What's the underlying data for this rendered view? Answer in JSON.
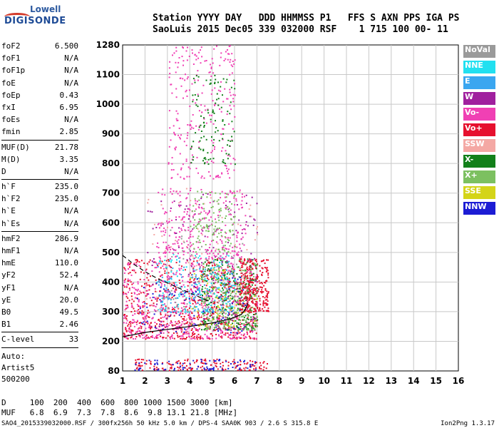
{
  "logo": {
    "top": "Lowell",
    "main": "DIGISONDE"
  },
  "header": {
    "labels": "Station YYYY DAY   DDD HHMMSS P1   FFS S AXN PPS IGA PS",
    "values": "SaoLuis 2015 Dec05 339 032000 RSF    1 715 100 00- 11"
  },
  "params": {
    "group1": [
      {
        "label": "foF2",
        "value": "6.500"
      },
      {
        "label": "foF1",
        "value": "N/A"
      },
      {
        "label": "foF1p",
        "value": "N/A"
      },
      {
        "label": "foE",
        "value": "N/A"
      },
      {
        "label": "foEp",
        "value": "0.43"
      },
      {
        "label": "fxI",
        "value": "6.95"
      },
      {
        "label": "foEs",
        "value": "N/A"
      },
      {
        "label": "fmin",
        "value": "2.85"
      }
    ],
    "group2": [
      {
        "label": "MUF(D)",
        "value": "21.78"
      },
      {
        "label": "M(D)",
        "value": "3.35"
      },
      {
        "label": "D",
        "value": "N/A"
      }
    ],
    "group3": [
      {
        "label": "h`F",
        "value": "235.0"
      },
      {
        "label": "h`F2",
        "value": "235.0"
      },
      {
        "label": "h`E",
        "value": "N/A"
      },
      {
        "label": "h`Es",
        "value": "N/A"
      }
    ],
    "group4": [
      {
        "label": "hmF2",
        "value": "286.9"
      },
      {
        "label": "hmF1",
        "value": "N/A"
      },
      {
        "label": "hmE",
        "value": "110.0"
      },
      {
        "label": "yF2",
        "value": "52.4"
      },
      {
        "label": "yF1",
        "value": "N/A"
      },
      {
        "label": "yE",
        "value": "20.0"
      },
      {
        "label": "B0",
        "value": "49.5"
      },
      {
        "label": "B1",
        "value": "2.46"
      }
    ],
    "group5": [
      {
        "label": "C-level",
        "value": "33"
      }
    ]
  },
  "autoscale": {
    "line1": "Auto:",
    "line2": "Artist5",
    "line3": "500200"
  },
  "legend": [
    {
      "label": "NoVal",
      "color": "#9a9a9a"
    },
    {
      "label": "NNE",
      "color": "#22e0f0"
    },
    {
      "label": "E",
      "color": "#3aa6f0"
    },
    {
      "label": "W",
      "color": "#a0209e"
    },
    {
      "label": "Vo-",
      "color": "#f040b4"
    },
    {
      "label": "Vo+",
      "color": "#e6102e"
    },
    {
      "label": "SSW",
      "color": "#f4a8a4"
    },
    {
      "label": "X-",
      "color": "#12801a"
    },
    {
      "label": "X+",
      "color": "#7cc060"
    },
    {
      "label": "SSE",
      "color": "#d4d418"
    },
    {
      "label": "NNW",
      "color": "#1c1cd4"
    }
  ],
  "muf_table": {
    "row1": "D     100  200  400  600  800 1000 1500 3000 [km]",
    "row2": "MUF   6.8  6.9  7.3  7.8  8.6  9.8 13.1 21.8 [MHz]"
  },
  "footer": {
    "left": "SAO4_2015339032000.RSF / 300fx256h 50 kHz 5.0 km / DPS-4 SAA0K 903 / 2.6 S 315.8 E",
    "right": "Ion2Png 1.3.17"
  },
  "chart_data": {
    "type": "scatter",
    "x_ticks": [
      1,
      2,
      3,
      4,
      5,
      6,
      7,
      8,
      9,
      10,
      11,
      12,
      13,
      14,
      15,
      16
    ],
    "y_ticks": [
      80,
      200,
      300,
      400,
      500,
      600,
      700,
      800,
      900,
      1000,
      1100,
      1280
    ],
    "xlim": [
      1,
      16
    ],
    "ylim": [
      80,
      1280
    ],
    "y_scale": "nonlinear (grid rows evenly spaced at printed tick values)",
    "grid": true,
    "clusters": [
      {
        "series": "Vo+",
        "xmin": 1.0,
        "xmax": 7.0,
        "ymin": 210,
        "ymax": 480,
        "count": 700
      },
      {
        "series": "Vo-",
        "xmin": 1.0,
        "xmax": 7.0,
        "ymin": 210,
        "ymax": 470,
        "count": 550
      },
      {
        "series": "X-",
        "xmin": 4.5,
        "xmax": 7.0,
        "ymin": 240,
        "ymax": 480,
        "count": 300
      },
      {
        "series": "X+",
        "xmin": 4.5,
        "xmax": 7.0,
        "ymin": 240,
        "ymax": 480,
        "count": 220
      },
      {
        "series": "NNE",
        "xmin": 2.5,
        "xmax": 6.0,
        "ymin": 300,
        "ymax": 500,
        "count": 160
      },
      {
        "series": "E",
        "xmin": 2.5,
        "xmax": 6.0,
        "ymin": 300,
        "ymax": 480,
        "count": 120
      },
      {
        "series": "W",
        "xmin": 2.0,
        "xmax": 7.0,
        "ymin": 240,
        "ymax": 700,
        "count": 180
      },
      {
        "series": "NNW",
        "xmin": 1.5,
        "xmax": 6.5,
        "ymin": 230,
        "ymax": 420,
        "count": 80
      },
      {
        "series": "SSW",
        "xmin": 2.0,
        "xmax": 7.0,
        "ymin": 250,
        "ymax": 720,
        "count": 120
      },
      {
        "series": "SSE",
        "xmin": 4.0,
        "xmax": 7.0,
        "ymin": 250,
        "ymax": 450,
        "count": 60
      },
      {
        "series": "NoVal",
        "xmin": 3.0,
        "xmax": 6.5,
        "ymin": 300,
        "ymax": 650,
        "count": 60
      },
      {
        "series": "Vo-",
        "xmin": 2.5,
        "xmax": 6.5,
        "ymin": 480,
        "ymax": 720,
        "count": 300
      },
      {
        "series": "X+",
        "xmin": 4.0,
        "xmax": 6.0,
        "ymin": 500,
        "ymax": 720,
        "count": 120
      },
      {
        "series": "Vo-",
        "xmin": 3.0,
        "xmax": 6.0,
        "ymin": 750,
        "ymax": 1280,
        "count": 260
      },
      {
        "series": "X-",
        "xmin": 4.0,
        "xmax": 6.0,
        "ymin": 800,
        "ymax": 1100,
        "count": 110
      },
      {
        "series": "Vo+",
        "xmin": 1.5,
        "xmax": 7.5,
        "ymin": 85,
        "ymax": 130,
        "count": 160
      },
      {
        "series": "NNW",
        "xmin": 1.5,
        "xmax": 7.0,
        "ymin": 85,
        "ymax": 130,
        "count": 80
      },
      {
        "series": "Vo+",
        "xmin": 6.2,
        "xmax": 7.5,
        "ymin": 300,
        "ymax": 480,
        "count": 250
      }
    ],
    "profile_curve": [
      [
        1.0,
        215
      ],
      [
        2.0,
        230
      ],
      [
        3.0,
        240
      ],
      [
        4.0,
        250
      ],
      [
        5.0,
        262
      ],
      [
        5.8,
        275
      ],
      [
        6.3,
        290
      ],
      [
        6.5,
        310
      ],
      [
        6.6,
        330
      ]
    ],
    "trace_curve_dashed": [
      [
        1.0,
        490
      ],
      [
        1.5,
        460
      ],
      [
        2.0,
        435
      ],
      [
        2.6,
        410
      ],
      [
        3.2,
        390
      ],
      [
        3.8,
        370
      ],
      [
        4.4,
        350
      ],
      [
        5.0,
        330
      ]
    ]
  }
}
